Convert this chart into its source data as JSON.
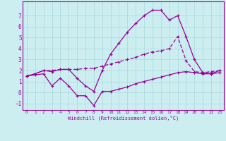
{
  "xlabel": "Windchill (Refroidissement éolien,°C)",
  "background_color": "#cceef0",
  "grid_color": "#aad8dc",
  "line_color": "#990099",
  "x_ticks": [
    0,
    1,
    2,
    3,
    4,
    5,
    6,
    7,
    8,
    9,
    10,
    11,
    12,
    13,
    14,
    15,
    16,
    17,
    18,
    19,
    20,
    21,
    22,
    23
  ],
  "y_ticks": [
    -1,
    0,
    1,
    2,
    3,
    4,
    5,
    6,
    7
  ],
  "ylim": [
    -1.6,
    8.3
  ],
  "xlim": [
    -0.5,
    23.5
  ],
  "line_top_x": [
    0,
    1,
    2,
    3,
    4,
    5,
    6,
    7,
    8,
    9,
    10,
    11,
    12,
    13,
    14,
    15,
    16,
    17,
    18,
    19,
    20,
    21,
    22,
    23
  ],
  "line_top_y": [
    1.5,
    1.7,
    2.0,
    1.9,
    2.1,
    2.1,
    1.3,
    0.6,
    0.1,
    2.0,
    3.5,
    4.5,
    5.5,
    6.3,
    7.0,
    7.5,
    7.5,
    6.6,
    7.0,
    5.1,
    3.0,
    1.8,
    1.7,
    2.0
  ],
  "line_mid_x": [
    0,
    1,
    2,
    3,
    4,
    5,
    6,
    7,
    8,
    9,
    10,
    11,
    12,
    13,
    14,
    15,
    16,
    17,
    18,
    19,
    20,
    21,
    22,
    23
  ],
  "line_mid_y": [
    1.5,
    1.7,
    2.0,
    2.0,
    2.1,
    2.1,
    2.1,
    2.2,
    2.2,
    2.4,
    2.6,
    2.8,
    3.0,
    3.2,
    3.5,
    3.7,
    3.8,
    4.0,
    5.1,
    2.9,
    1.9,
    1.8,
    1.9,
    2.0
  ],
  "line_bot_x": [
    0,
    1,
    2,
    3,
    4,
    5,
    6,
    7,
    8,
    9,
    10,
    11,
    12,
    13,
    14,
    15,
    16,
    17,
    18,
    19,
    20,
    21,
    22,
    23
  ],
  "line_bot_y": [
    1.5,
    1.6,
    1.7,
    0.6,
    1.3,
    0.6,
    -0.3,
    -0.3,
    -1.2,
    0.1,
    0.1,
    0.3,
    0.5,
    0.8,
    1.0,
    1.2,
    1.4,
    1.6,
    1.8,
    1.9,
    1.8,
    1.7,
    1.7,
    1.8
  ]
}
